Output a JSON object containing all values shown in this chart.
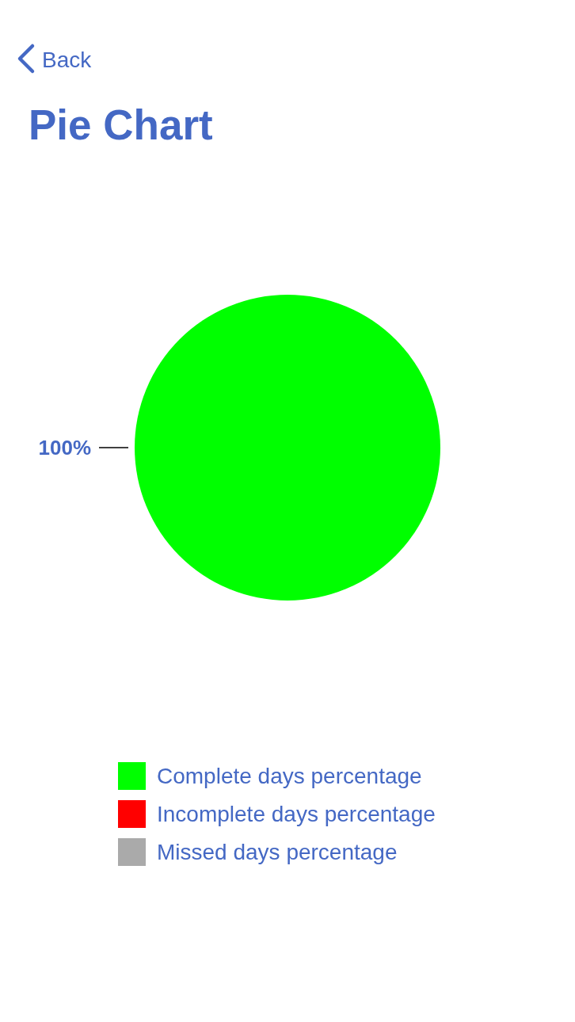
{
  "chart_data": {
    "type": "pie",
    "title": "Pie Chart",
    "categories": [
      "Complete days percentage",
      "Incomplete days percentage",
      "Missed days percentage"
    ],
    "values": [
      100,
      0,
      0
    ],
    "colors": [
      "#00ff00",
      "#ff0000",
      "#aaaaaa"
    ],
    "value_labels": [
      "100%",
      null,
      null
    ],
    "legend": "bottom",
    "annotations": [
      "Back"
    ]
  }
}
